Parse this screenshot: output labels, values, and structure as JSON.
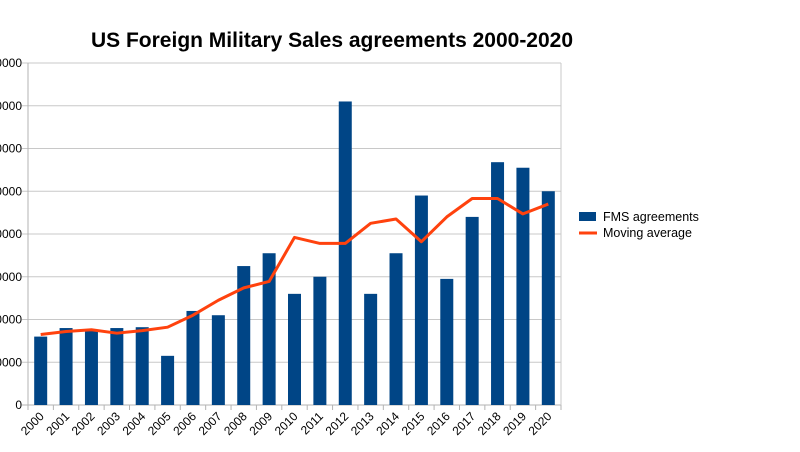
{
  "chart_data": {
    "type": "bar",
    "title": "US Foreign Military Sales agreements 2000-2020",
    "categories": [
      "2000",
      "2001",
      "2002",
      "2003",
      "2004",
      "2005",
      "2006",
      "2007",
      "2008",
      "2009",
      "2010",
      "2011",
      "2012",
      "2013",
      "2014",
      "2015",
      "2016",
      "2017",
      "2018",
      "2019",
      "2020"
    ],
    "y_tick_labels": [
      "0",
      "0000",
      "0000",
      "0000",
      "0000",
      "0000",
      "0000",
      "0000",
      "0000"
    ],
    "ylim": [
      0,
      80000
    ],
    "y_step": 10000,
    "grid": true,
    "legend_position": "right",
    "series": [
      {
        "name": "FMS agreements",
        "type": "bar",
        "color": "#004586",
        "values": [
          16000,
          18000,
          17500,
          18000,
          18200,
          11500,
          22000,
          21000,
          32500,
          35500,
          26000,
          30000,
          71000,
          26000,
          35500,
          49000,
          29500,
          44000,
          56800,
          55500,
          50000
        ]
      },
      {
        "name": "Moving average",
        "type": "line",
        "color": "#ff420e",
        "values": [
          16500,
          17200,
          17600,
          16800,
          17400,
          18200,
          21000,
          24500,
          27400,
          28900,
          39200,
          37800,
          37800,
          42500,
          43500,
          38200,
          44000,
          48300,
          48300,
          44700,
          47000
        ]
      }
    ]
  }
}
